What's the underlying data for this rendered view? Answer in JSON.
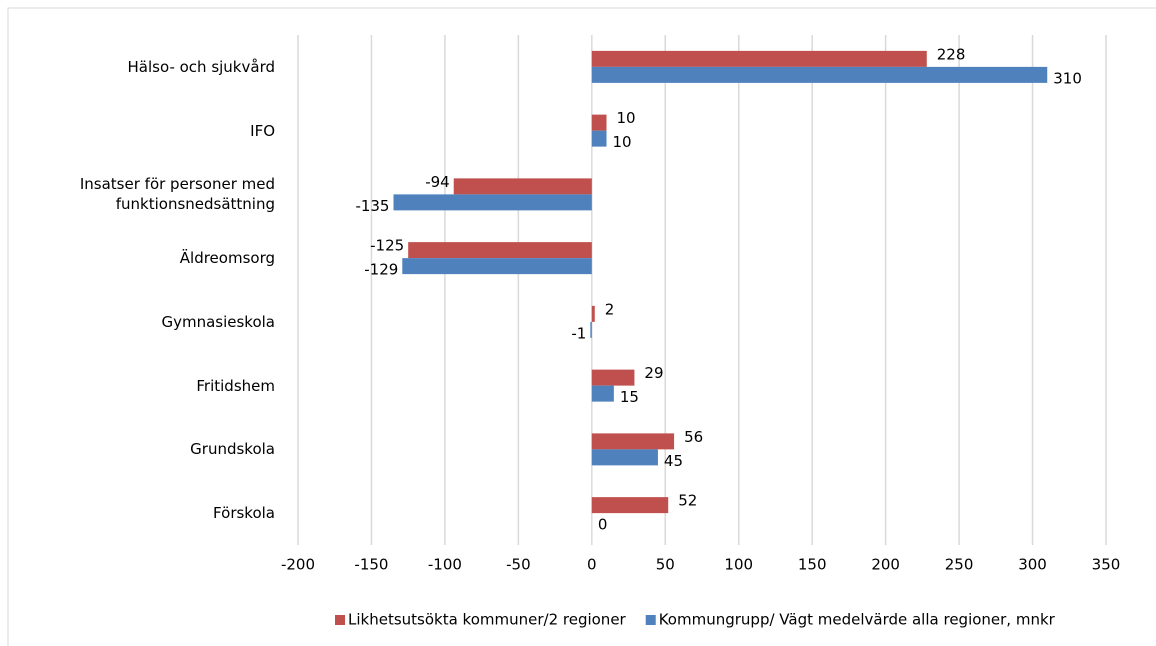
{
  "chart_data": {
    "type": "barh",
    "categories": [
      "Hälso- och sjukvård",
      "IFO",
      "Insatser för personer med funktionsnedsättning",
      "Äldreomsorg",
      "Gymnasieskola",
      "Fritidshem",
      "Grundskola",
      "Förskola"
    ],
    "series": [
      {
        "name": "Likhetsutsökta kommuner/2 regioner",
        "color": "#c0504d",
        "values": [
          228,
          10,
          -94,
          -125,
          2,
          29,
          56,
          52
        ]
      },
      {
        "name": "Kommungrupp/ Vägt medelvärde alla regioner, mnkr",
        "color": "#4f81bd",
        "values": [
          310,
          10,
          -135,
          -129,
          -1,
          15,
          45,
          0
        ]
      }
    ],
    "xlim": [
      -200,
      350
    ],
    "xticks": [
      -200,
      -150,
      -100,
      -50,
      0,
      50,
      100,
      150,
      200,
      250,
      300,
      350
    ],
    "grid": true,
    "legend": "bottom"
  }
}
